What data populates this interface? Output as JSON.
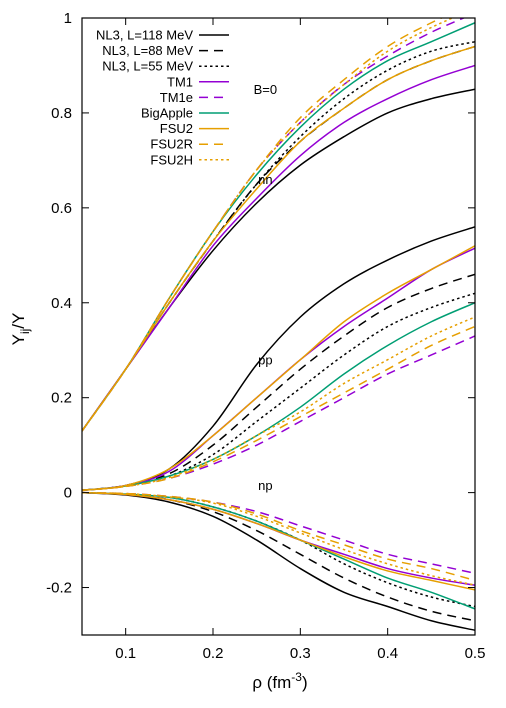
{
  "chart_data": {
    "type": "line",
    "xlabel": "ρ (fm",
    "xlabel_sup": "-3",
    "xlabel_close": ")",
    "ylabel_main": "Y",
    "ylabel_sub": "ij",
    "ylabel_tail": "/Y",
    "xlim": [
      0.05,
      0.5
    ],
    "ylim": [
      -0.3,
      1.0
    ],
    "x_ticks": [
      {
        "value": 0.1,
        "label": "0.1"
      },
      {
        "value": 0.2,
        "label": "0.2"
      },
      {
        "value": 0.3,
        "label": "0.3"
      },
      {
        "value": 0.4,
        "label": "0.4"
      },
      {
        "value": 0.5,
        "label": "0.5"
      }
    ],
    "y_ticks": [
      {
        "value": -0.2,
        "label": "-0.2"
      },
      {
        "value": 0,
        "label": "0"
      },
      {
        "value": 0.2,
        "label": "0.2"
      },
      {
        "value": 0.4,
        "label": "0.4"
      },
      {
        "value": 0.6,
        "label": "0.6"
      },
      {
        "value": 0.8,
        "label": "0.8"
      },
      {
        "value": 1,
        "label": "1"
      }
    ],
    "grid": false,
    "legend_placement": "top-left",
    "annotations": [
      {
        "text": "B=0",
        "x": 0.26,
        "y": 0.84
      },
      {
        "text": "nn",
        "x": 0.26,
        "y": 0.65
      },
      {
        "text": "pp",
        "x": 0.26,
        "y": 0.27
      },
      {
        "text": "np",
        "x": 0.26,
        "y": 0.005
      }
    ],
    "x": [
      0.05,
      0.1,
      0.15,
      0.2,
      0.25,
      0.3,
      0.35,
      0.4,
      0.45,
      0.5
    ],
    "series": [
      {
        "name": "NL3, L=118 MeV",
        "color": "#000000",
        "dash": "solid",
        "nn": [
          0.13,
          0.26,
          0.39,
          0.51,
          0.61,
          0.69,
          0.75,
          0.8,
          0.83,
          0.85
        ],
        "pp": [
          0.005,
          0.015,
          0.05,
          0.14,
          0.27,
          0.37,
          0.44,
          0.49,
          0.53,
          0.56
        ],
        "np": [
          0.0,
          -0.005,
          -0.02,
          -0.05,
          -0.1,
          -0.16,
          -0.21,
          -0.24,
          -0.27,
          -0.29
        ]
      },
      {
        "name": "NL3, L=88 MeV",
        "color": "#000000",
        "dash": "dashed",
        "nn": [
          0.13,
          0.26,
          0.4,
          0.53,
          0.65,
          0.74,
          0.81,
          0.87,
          0.91,
          0.94
        ],
        "pp": [
          0.005,
          0.015,
          0.04,
          0.1,
          0.18,
          0.26,
          0.33,
          0.39,
          0.43,
          0.46
        ],
        "np": [
          0.0,
          -0.004,
          -0.015,
          -0.04,
          -0.08,
          -0.13,
          -0.18,
          -0.22,
          -0.25,
          -0.27
        ]
      },
      {
        "name": "NL3, L=55 MeV",
        "color": "#000000",
        "dash": "dotted",
        "nn": [
          0.13,
          0.26,
          0.4,
          0.53,
          0.65,
          0.75,
          0.83,
          0.89,
          0.93,
          0.95
        ],
        "pp": [
          0.005,
          0.014,
          0.035,
          0.08,
          0.15,
          0.22,
          0.29,
          0.35,
          0.39,
          0.42
        ],
        "np": [
          0.0,
          -0.003,
          -0.01,
          -0.03,
          -0.06,
          -0.1,
          -0.15,
          -0.19,
          -0.22,
          -0.24
        ]
      },
      {
        "name": "TM1",
        "color": "#9400d3",
        "dash": "solid",
        "nn": [
          0.13,
          0.26,
          0.39,
          0.52,
          0.62,
          0.71,
          0.78,
          0.83,
          0.87,
          0.9
        ],
        "pp": [
          0.005,
          0.015,
          0.045,
          0.12,
          0.2,
          0.28,
          0.35,
          0.41,
          0.47,
          0.515
        ],
        "np": [
          0.0,
          -0.004,
          -0.015,
          -0.035,
          -0.065,
          -0.1,
          -0.13,
          -0.16,
          -0.18,
          -0.195
        ]
      },
      {
        "name": "TM1e",
        "color": "#9400d3",
        "dash": "dashed",
        "nn": [
          0.13,
          0.26,
          0.41,
          0.55,
          0.68,
          0.78,
          0.86,
          0.92,
          0.97,
          1.01
        ],
        "pp": [
          0.005,
          0.013,
          0.03,
          0.06,
          0.1,
          0.15,
          0.2,
          0.25,
          0.29,
          0.33
        ],
        "np": [
          0.0,
          -0.002,
          -0.008,
          -0.02,
          -0.04,
          -0.07,
          -0.1,
          -0.13,
          -0.15,
          -0.17
        ]
      },
      {
        "name": "BigApple",
        "color": "#009e73",
        "dash": "solid",
        "nn": [
          0.13,
          0.26,
          0.41,
          0.55,
          0.67,
          0.77,
          0.85,
          0.91,
          0.95,
          0.99
        ],
        "pp": [
          0.005,
          0.014,
          0.035,
          0.07,
          0.12,
          0.18,
          0.25,
          0.31,
          0.36,
          0.4
        ],
        "np": [
          0.0,
          -0.003,
          -0.01,
          -0.03,
          -0.06,
          -0.1,
          -0.14,
          -0.18,
          -0.21,
          -0.245
        ]
      },
      {
        "name": "FSU2",
        "color": "#e69f00",
        "dash": "solid",
        "nn": [
          0.13,
          0.26,
          0.4,
          0.53,
          0.64,
          0.74,
          0.81,
          0.87,
          0.91,
          0.94
        ],
        "pp": [
          0.005,
          0.015,
          0.05,
          0.12,
          0.2,
          0.28,
          0.36,
          0.42,
          0.47,
          0.52
        ],
        "np": [
          0.0,
          -0.004,
          -0.015,
          -0.035,
          -0.065,
          -0.1,
          -0.135,
          -0.165,
          -0.185,
          -0.205
        ]
      },
      {
        "name": "FSU2R",
        "color": "#e69f00",
        "dash": "dashed",
        "nn": [
          0.13,
          0.26,
          0.41,
          0.55,
          0.68,
          0.79,
          0.87,
          0.94,
          0.99,
          1.03
        ],
        "pp": [
          0.005,
          0.013,
          0.03,
          0.065,
          0.11,
          0.16,
          0.21,
          0.26,
          0.31,
          0.35
        ],
        "np": [
          0.0,
          -0.002,
          -0.008,
          -0.02,
          -0.045,
          -0.08,
          -0.11,
          -0.14,
          -0.16,
          -0.185
        ]
      },
      {
        "name": "FSU2H",
        "color": "#e69f00",
        "dash": "dotted",
        "nn": [
          0.13,
          0.26,
          0.41,
          0.55,
          0.68,
          0.78,
          0.86,
          0.93,
          0.98,
          1.02
        ],
        "pp": [
          0.005,
          0.013,
          0.032,
          0.07,
          0.12,
          0.17,
          0.23,
          0.28,
          0.33,
          0.37
        ],
        "np": [
          0.0,
          -0.002,
          -0.009,
          -0.022,
          -0.05,
          -0.085,
          -0.12,
          -0.15,
          -0.175,
          -0.195
        ]
      }
    ]
  }
}
